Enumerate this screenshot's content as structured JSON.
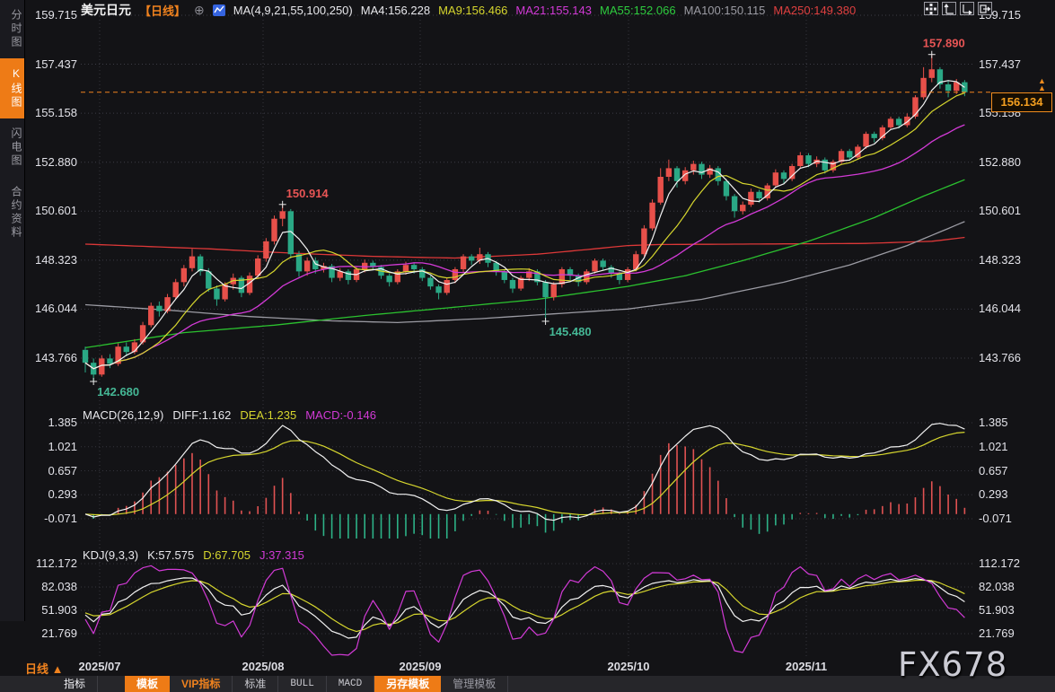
{
  "sidebar": {
    "items": [
      {
        "label": "分时图",
        "active": false
      },
      {
        "label": "K线图",
        "active": true
      },
      {
        "label": "闪电图",
        "active": false
      },
      {
        "label": "合约资料",
        "active": false
      }
    ]
  },
  "header": {
    "symbol": "美元日元",
    "period_tag": "【日线】",
    "add_icon": "⊕",
    "ma_settings": "MA(4,9,21,55,100,250)",
    "ma4": "MA4:156.228",
    "ma9": "MA9:156.466",
    "ma21": "MA21:155.143",
    "ma55": "MA55:152.066",
    "ma100": "MA100:150.115",
    "ma250": "MA250:149.380"
  },
  "macd_header": {
    "title": "MACD(26,12,9)",
    "diff": "DIFF:1.162",
    "dea": "DEA:1.235",
    "macd": "MACD:-0.146"
  },
  "kdj_header": {
    "title": "KDJ(9,3,3)",
    "k": "K:57.575",
    "d": "D:67.705",
    "j": "J:37.315"
  },
  "price_tag": {
    "value": "156.134",
    "arrow": "▲"
  },
  "period_row": {
    "label": "日线",
    "arrow": "▲"
  },
  "toolbar": {
    "items": [
      {
        "label": "指标"
      },
      {
        "label": "模板"
      },
      {
        "label": "VIP指标"
      },
      {
        "label": "标准"
      },
      {
        "label": "BULL"
      },
      {
        "label": "MACD"
      },
      {
        "label": "另存模板"
      },
      {
        "label": "管理模板"
      }
    ]
  },
  "watermark": {
    "text": "FX678"
  },
  "colors": {
    "up": "#e7504a",
    "down": "#2aa885",
    "orange": "#f0821e",
    "ma4": "#f2f2f2",
    "ma9": "#d6d62e",
    "ma21": "#d23ad6",
    "ma55": "#2bc12f",
    "ma100": "#9b9ba3",
    "ma250": "#dc3838",
    "hist_pos": "#e05252",
    "hist_neg": "#2db287",
    "annotation_up": "#e85555",
    "annotation_down": "#45b795"
  },
  "chart_data": [
    {
      "type": "candlestick",
      "title": "美元日元 日线 (USD/JPY daily)",
      "y_ticks": [
        "159.715",
        "157.437",
        "155.158",
        "152.880",
        "150.601",
        "148.323",
        "146.044",
        "143.766"
      ],
      "x_labels": [
        "2025/07",
        "2025/08",
        "2025/09",
        "2025/10",
        "2025/11"
      ],
      "ylim": [
        142.0,
        160.2
      ],
      "grid": true,
      "current_price": 156.134,
      "candles": [
        [
          144.15,
          144.3,
          143.1,
          143.55
        ],
        [
          143.55,
          143.75,
          142.68,
          143.0
        ],
        [
          143.0,
          143.9,
          142.9,
          143.75
        ],
        [
          143.75,
          143.95,
          143.3,
          143.5
        ],
        [
          143.5,
          144.45,
          143.4,
          144.3
        ],
        [
          144.3,
          144.5,
          143.85,
          144.05
        ],
        [
          144.05,
          144.65,
          143.95,
          144.5
        ],
        [
          144.5,
          145.45,
          144.4,
          145.3
        ],
        [
          145.3,
          146.35,
          145.2,
          146.2
        ],
        [
          146.2,
          146.4,
          145.7,
          145.95
        ],
        [
          145.95,
          146.75,
          145.85,
          146.6
        ],
        [
          146.6,
          147.45,
          146.5,
          147.3
        ],
        [
          147.3,
          148.1,
          147.1,
          147.95
        ],
        [
          147.95,
          148.85,
          147.8,
          148.5
        ],
        [
          148.5,
          148.6,
          147.6,
          147.8
        ],
        [
          147.8,
          147.95,
          146.85,
          147.0
        ],
        [
          147.0,
          147.15,
          146.2,
          146.5
        ],
        [
          146.5,
          147.3,
          146.4,
          147.2
        ],
        [
          147.2,
          147.7,
          146.95,
          147.5
        ],
        [
          147.5,
          147.6,
          146.6,
          146.8
        ],
        [
          146.8,
          147.75,
          146.7,
          147.6
        ],
        [
          147.6,
          148.55,
          147.5,
          148.4
        ],
        [
          148.4,
          149.35,
          148.25,
          149.2
        ],
        [
          149.2,
          150.4,
          149.05,
          150.25
        ],
        [
          150.25,
          150.914,
          149.9,
          150.6
        ],
        [
          150.6,
          150.7,
          148.4,
          148.6
        ],
        [
          148.6,
          148.75,
          147.55,
          147.8
        ],
        [
          147.8,
          148.45,
          147.6,
          148.3
        ],
        [
          148.3,
          148.45,
          147.7,
          147.9
        ],
        [
          147.9,
          148.2,
          147.75,
          148.05
        ],
        [
          148.05,
          148.15,
          147.3,
          147.5
        ],
        [
          147.5,
          147.95,
          147.35,
          147.8
        ],
        [
          147.8,
          147.9,
          147.2,
          147.4
        ],
        [
          147.4,
          148.0,
          147.3,
          147.9
        ],
        [
          147.9,
          148.35,
          147.75,
          148.2
        ],
        [
          148.2,
          148.3,
          147.85,
          148.0
        ],
        [
          148.0,
          148.1,
          147.45,
          147.6
        ],
        [
          147.6,
          147.7,
          147.1,
          147.3
        ],
        [
          147.3,
          147.9,
          147.2,
          147.8
        ],
        [
          147.8,
          148.25,
          147.65,
          148.1
        ],
        [
          148.1,
          148.2,
          147.7,
          147.9
        ],
        [
          147.9,
          148.0,
          147.35,
          147.5
        ],
        [
          147.5,
          147.6,
          146.95,
          147.1
        ],
        [
          147.1,
          147.2,
          146.5,
          146.8
        ],
        [
          146.8,
          147.5,
          146.7,
          147.4
        ],
        [
          147.4,
          148.0,
          147.25,
          147.9
        ],
        [
          147.9,
          148.6,
          147.75,
          148.5
        ],
        [
          148.5,
          148.6,
          148.1,
          148.3
        ],
        [
          148.3,
          148.9,
          148.15,
          148.6
        ],
        [
          148.6,
          148.7,
          148.0,
          148.2
        ],
        [
          148.2,
          148.3,
          147.6,
          147.8
        ],
        [
          147.8,
          147.9,
          147.25,
          147.4
        ],
        [
          147.4,
          147.5,
          146.8,
          147.0
        ],
        [
          147.0,
          147.6,
          146.9,
          147.5
        ],
        [
          147.5,
          147.95,
          147.35,
          147.8
        ],
        [
          147.8,
          147.9,
          147.15,
          147.3
        ],
        [
          147.3,
          147.4,
          145.48,
          146.6
        ],
        [
          146.6,
          147.3,
          146.45,
          147.2
        ],
        [
          147.2,
          148.0,
          147.05,
          147.9
        ],
        [
          147.9,
          148.0,
          147.4,
          147.6
        ],
        [
          147.6,
          147.7,
          147.1,
          147.3
        ],
        [
          147.3,
          147.9,
          147.2,
          147.8
        ],
        [
          147.8,
          148.4,
          147.7,
          148.3
        ],
        [
          148.3,
          148.4,
          147.85,
          148.0
        ],
        [
          148.0,
          148.1,
          147.5,
          147.7
        ],
        [
          147.7,
          147.8,
          147.2,
          147.4
        ],
        [
          147.4,
          148.0,
          147.3,
          147.9
        ],
        [
          147.9,
          148.75,
          147.8,
          148.6
        ],
        [
          148.6,
          149.95,
          148.5,
          149.8
        ],
        [
          149.8,
          151.15,
          149.7,
          151.0
        ],
        [
          151.0,
          152.6,
          150.9,
          152.2
        ],
        [
          152.2,
          153.0,
          152.0,
          152.6
        ],
        [
          152.6,
          152.7,
          151.7,
          152.0
        ],
        [
          152.0,
          152.65,
          151.85,
          152.5
        ],
        [
          152.5,
          152.95,
          152.3,
          152.8
        ],
        [
          152.8,
          152.9,
          152.1,
          152.3
        ],
        [
          152.3,
          152.75,
          152.15,
          152.6
        ],
        [
          152.6,
          152.7,
          151.8,
          152.0
        ],
        [
          152.0,
          152.1,
          151.1,
          151.3
        ],
        [
          151.3,
          151.4,
          150.3,
          150.6
        ],
        [
          150.6,
          151.05,
          150.45,
          150.9
        ],
        [
          150.9,
          151.65,
          150.8,
          151.5
        ],
        [
          151.5,
          151.6,
          151.0,
          151.2
        ],
        [
          151.2,
          151.9,
          151.1,
          151.8
        ],
        [
          151.8,
          152.55,
          151.7,
          152.4
        ],
        [
          152.4,
          152.5,
          151.9,
          152.1
        ],
        [
          152.1,
          152.8,
          152.0,
          152.7
        ],
        [
          152.7,
          153.35,
          152.6,
          153.2
        ],
        [
          153.2,
          153.3,
          152.65,
          152.8
        ],
        [
          152.8,
          153.15,
          152.65,
          153.0
        ],
        [
          153.0,
          153.1,
          152.35,
          152.5
        ],
        [
          152.5,
          153.0,
          152.4,
          152.9
        ],
        [
          152.9,
          153.5,
          152.8,
          153.4
        ],
        [
          153.4,
          153.5,
          152.95,
          153.1
        ],
        [
          153.1,
          153.7,
          153.0,
          153.6
        ],
        [
          153.6,
          154.3,
          153.5,
          154.2
        ],
        [
          154.2,
          154.3,
          153.8,
          154.0
        ],
        [
          154.0,
          154.6,
          153.9,
          154.5
        ],
        [
          154.5,
          155.0,
          154.4,
          154.9
        ],
        [
          154.9,
          155.0,
          154.45,
          154.6
        ],
        [
          154.6,
          155.15,
          154.5,
          155.0
        ],
        [
          155.0,
          156.0,
          154.9,
          155.9
        ],
        [
          155.9,
          157.3,
          155.8,
          156.8
        ],
        [
          156.8,
          157.89,
          156.6,
          157.2
        ],
        [
          157.2,
          157.3,
          156.3,
          156.5
        ],
        [
          156.5,
          156.7,
          155.9,
          156.2
        ],
        [
          156.2,
          156.75,
          156.05,
          156.6
        ],
        [
          156.6,
          156.7,
          155.95,
          156.134
        ]
      ],
      "overlays": {
        "ma55_keypoints": [
          [
            0,
            144.25
          ],
          [
            12,
            144.95
          ],
          [
            23,
            145.3
          ],
          [
            34,
            145.75
          ],
          [
            44,
            146.1
          ],
          [
            55,
            146.5
          ],
          [
            66,
            147.1
          ],
          [
            73,
            147.6
          ],
          [
            80,
            148.3
          ],
          [
            88,
            149.2
          ],
          [
            96,
            150.3
          ],
          [
            102,
            151.3
          ],
          [
            107,
            152.066
          ]
        ],
        "ma100_keypoints": [
          [
            0,
            146.25
          ],
          [
            10,
            146.0
          ],
          [
            20,
            145.7
          ],
          [
            30,
            145.5
          ],
          [
            38,
            145.42
          ],
          [
            48,
            145.6
          ],
          [
            58,
            145.85
          ],
          [
            66,
            146.05
          ],
          [
            75,
            146.5
          ],
          [
            85,
            147.3
          ],
          [
            93,
            148.1
          ],
          [
            100,
            149.0
          ],
          [
            107,
            150.115
          ]
        ],
        "ma250_keypoints": [
          [
            0,
            149.07
          ],
          [
            15,
            148.85
          ],
          [
            25,
            148.65
          ],
          [
            35,
            148.5
          ],
          [
            45,
            148.42
          ],
          [
            55,
            148.6
          ],
          [
            62,
            148.85
          ],
          [
            66,
            149.0
          ],
          [
            70,
            149.05
          ],
          [
            95,
            149.1
          ],
          [
            103,
            149.2
          ],
          [
            107,
            149.38
          ]
        ]
      },
      "annotations": [
        {
          "text": "142.680",
          "index": 1,
          "anchor": "low",
          "color": "#45b795"
        },
        {
          "text": "150.914",
          "index": 24,
          "anchor": "high",
          "color": "#e85555"
        },
        {
          "text": "145.480",
          "index": 56,
          "anchor": "low",
          "color": "#45b795"
        },
        {
          "text": "157.890",
          "index": 103,
          "anchor": "high",
          "color": "#e85555"
        }
      ]
    },
    {
      "type": "macd",
      "params": [
        26,
        12,
        9
      ],
      "diff": 1.162,
      "dea": 1.235,
      "macd": -0.146,
      "y_ticks": [
        "1.385",
        "1.021",
        "0.657",
        "0.293",
        "-0.071"
      ]
    },
    {
      "type": "kdj",
      "params": [
        9,
        3,
        3
      ],
      "k": 57.575,
      "d": 67.705,
      "j": 37.315,
      "y_ticks": [
        "112.172",
        "82.038",
        "51.903",
        "21.769"
      ]
    }
  ]
}
